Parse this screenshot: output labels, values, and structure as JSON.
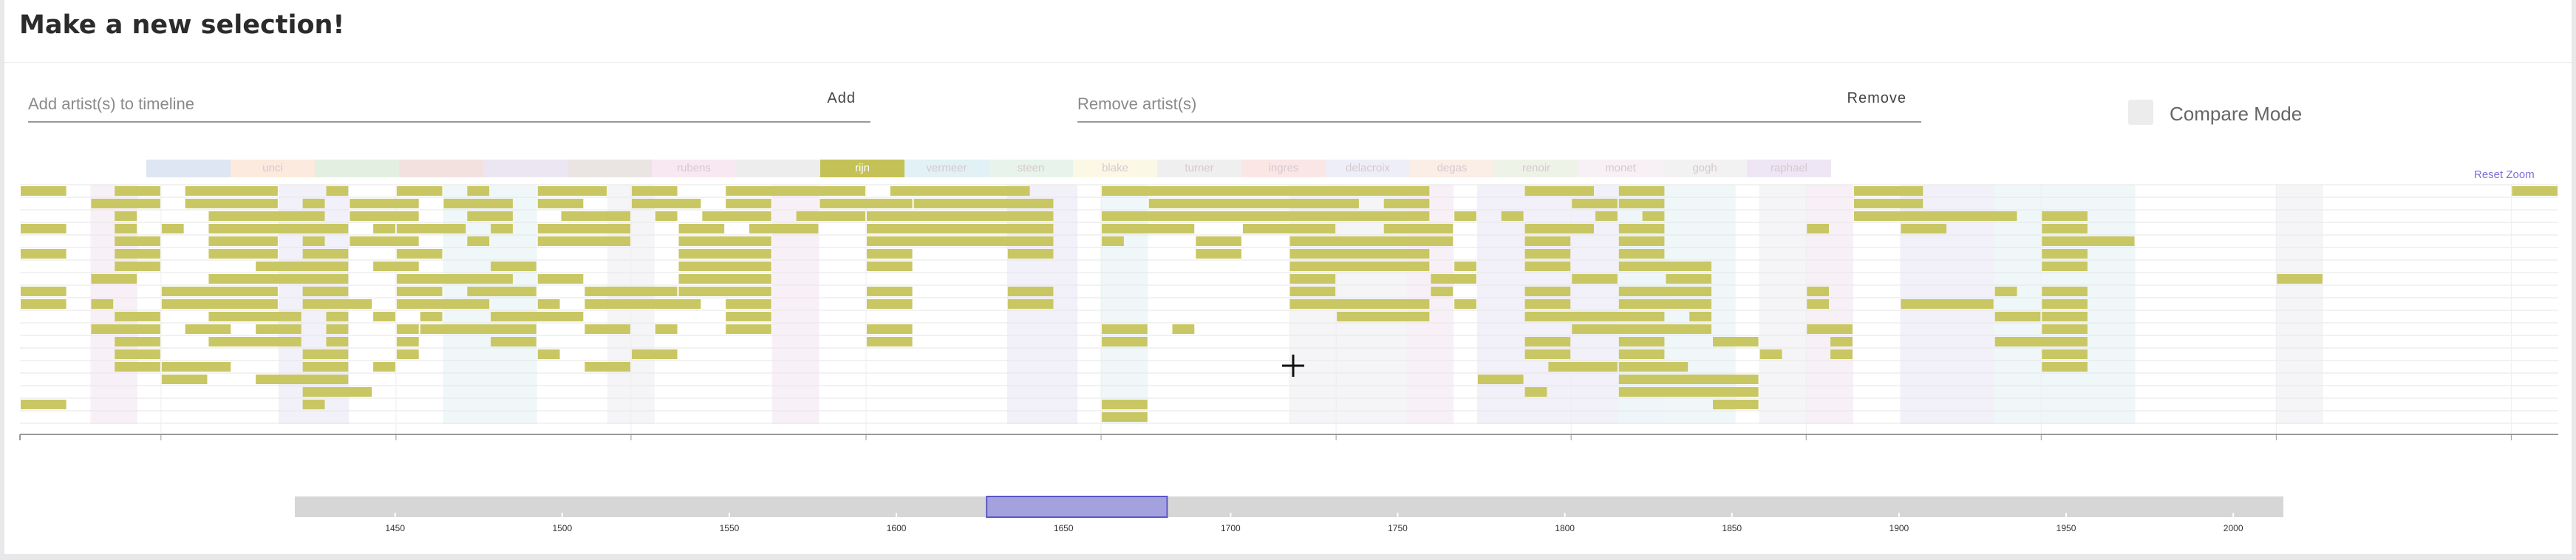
{
  "header": {
    "title": "Make a new selection!"
  },
  "add": {
    "placeholder": "Add artist(s) to timeline",
    "button": "Add"
  },
  "remove": {
    "placeholder": "Remove artist(s)",
    "button": "Remove"
  },
  "compare": {
    "label": "Compare Mode",
    "checked": false
  },
  "reset_zoom": "Reset Zoom",
  "legend": [
    {
      "label": "",
      "color": "#dfe6f3"
    },
    {
      "label": "unci",
      "color": "#fbeadd"
    },
    {
      "label": "",
      "color": "#e3efe0"
    },
    {
      "label": "",
      "color": "#f3e1e0"
    },
    {
      "label": "",
      "color": "#ebe6f2"
    },
    {
      "label": "",
      "color": "#eae5e2"
    },
    {
      "label": "rubens",
      "color": "#f8e8f2"
    },
    {
      "label": "",
      "color": "#ededed"
    },
    {
      "label": "rijn",
      "color": "#c4c156",
      "active": true
    },
    {
      "label": "vermeer",
      "color": "#e1f1f5"
    },
    {
      "label": "steen",
      "color": "#e8f4eb"
    },
    {
      "label": "blake",
      "color": "#fbf8e6"
    },
    {
      "label": "turner",
      "color": "#efefef"
    },
    {
      "label": "ingres",
      "color": "#fbe6e6"
    },
    {
      "label": "delacroix",
      "color": "#eeeef8"
    },
    {
      "label": "degas",
      "color": "#fbeee6"
    },
    {
      "label": "renoir",
      "color": "#eef3e8"
    },
    {
      "label": "monet",
      "color": "#f7f1f5"
    },
    {
      "label": "gogh",
      "color": "#f2f2f2"
    },
    {
      "label": "raphael",
      "color": "#eee6f4"
    }
  ],
  "chart_data": {
    "type": "timeline",
    "x_range": [
      1627,
      1681
    ],
    "x_ticks": [
      1630,
      1635,
      1640,
      1645,
      1650,
      1655,
      1660,
      1665,
      1670,
      1675,
      1680
    ],
    "highlighted_artist": "rijn",
    "works": [
      [
        [
          1627,
          1628
        ],
        [
          1629,
          1630
        ],
        [
          1630.5,
          1632.5
        ],
        [
          1633.5,
          1634
        ],
        [
          1635,
          1636
        ],
        [
          1636.5,
          1637
        ],
        [
          1638,
          1639.5
        ],
        [
          1640,
          1641
        ],
        [
          1642,
          1645
        ],
        [
          1645.5,
          1648.5
        ],
        [
          1650,
          1657
        ],
        [
          1659,
          1660.5
        ],
        [
          1661,
          1662
        ],
        [
          1666,
          1667.5
        ],
        [
          1680,
          1681
        ]
      ],
      [
        [
          1628.5,
          1630
        ],
        [
          1630.5,
          1632.5
        ],
        [
          1633,
          1633.5
        ],
        [
          1634,
          1635.5
        ],
        [
          1636,
          1637.5
        ],
        [
          1638,
          1639
        ],
        [
          1640,
          1641.5
        ],
        [
          1642,
          1643
        ],
        [
          1644,
          1646
        ],
        [
          1646,
          1649
        ],
        [
          1651,
          1655.5
        ],
        [
          1656,
          1657
        ],
        [
          1660,
          1661
        ],
        [
          1661,
          1662
        ],
        [
          1666,
          1667.5
        ]
      ],
      [
        [
          1629,
          1629.5
        ],
        [
          1631,
          1633.5
        ],
        [
          1634,
          1635.5
        ],
        [
          1636.5,
          1637.5
        ],
        [
          1638.5,
          1640
        ],
        [
          1640.5,
          1641
        ],
        [
          1641.5,
          1643
        ],
        [
          1643.5,
          1645
        ],
        [
          1645,
          1649
        ],
        [
          1650,
          1657
        ],
        [
          1657.5,
          1658
        ],
        [
          1658.5,
          1659
        ],
        [
          1660.5,
          1661
        ],
        [
          1661.5,
          1662
        ],
        [
          1666,
          1669.5
        ],
        [
          1670,
          1671
        ]
      ],
      [
        [
          1627,
          1628
        ],
        [
          1629,
          1629.5
        ],
        [
          1630,
          1630.5
        ],
        [
          1631,
          1634
        ],
        [
          1634.5,
          1635
        ],
        [
          1635,
          1636.5
        ],
        [
          1637,
          1637.5
        ],
        [
          1638,
          1640
        ],
        [
          1641,
          1642
        ],
        [
          1642.5,
          1644
        ],
        [
          1645,
          1649
        ],
        [
          1650,
          1652
        ],
        [
          1653,
          1655
        ],
        [
          1656,
          1657.5
        ],
        [
          1659,
          1660.5
        ],
        [
          1661,
          1662
        ],
        [
          1665,
          1665.5
        ],
        [
          1667,
          1668
        ],
        [
          1670,
          1671
        ]
      ],
      [
        [
          1629,
          1630
        ],
        [
          1631,
          1632.5
        ],
        [
          1633,
          1633.5
        ],
        [
          1634,
          1635.5
        ],
        [
          1636.5,
          1637
        ],
        [
          1638,
          1640
        ],
        [
          1641,
          1643
        ],
        [
          1645,
          1649
        ],
        [
          1650,
          1650.5
        ],
        [
          1652,
          1653
        ],
        [
          1654,
          1657.5
        ],
        [
          1659,
          1660
        ],
        [
          1661,
          1662
        ],
        [
          1670,
          1672
        ]
      ],
      [
        [
          1627,
          1628
        ],
        [
          1629,
          1630
        ],
        [
          1631,
          1632.5
        ],
        [
          1633,
          1634
        ],
        [
          1635,
          1636
        ],
        [
          1641,
          1643
        ],
        [
          1645,
          1646
        ],
        [
          1648,
          1649
        ],
        [
          1652,
          1653
        ],
        [
          1654,
          1657
        ],
        [
          1659,
          1660
        ],
        [
          1661,
          1662
        ],
        [
          1670,
          1671
        ]
      ],
      [
        [
          1629,
          1630
        ],
        [
          1632,
          1634
        ],
        [
          1634.5,
          1635.5
        ],
        [
          1637,
          1638
        ],
        [
          1641,
          1643
        ],
        [
          1645,
          1646
        ],
        [
          1654,
          1657
        ],
        [
          1657.5,
          1658
        ],
        [
          1659,
          1660
        ],
        [
          1661,
          1663
        ],
        [
          1670,
          1671
        ]
      ],
      [
        [
          1628.5,
          1629.5
        ],
        [
          1631,
          1634
        ],
        [
          1635,
          1637.5
        ],
        [
          1638,
          1639
        ],
        [
          1641,
          1643
        ],
        [
          1654,
          1655
        ],
        [
          1657,
          1658
        ],
        [
          1660,
          1661
        ],
        [
          1662,
          1663
        ],
        [
          1675,
          1676
        ]
      ],
      [
        [
          1627,
          1628
        ],
        [
          1630,
          1632.5
        ],
        [
          1633,
          1634
        ],
        [
          1635,
          1636
        ],
        [
          1636.5,
          1638
        ],
        [
          1639,
          1641
        ],
        [
          1641,
          1643
        ],
        [
          1645,
          1646
        ],
        [
          1648,
          1649
        ],
        [
          1654,
          1655
        ],
        [
          1657,
          1657.5
        ],
        [
          1659,
          1660
        ],
        [
          1661,
          1663
        ],
        [
          1665,
          1665.5
        ],
        [
          1669,
          1669.5
        ],
        [
          1670,
          1671
        ]
      ],
      [
        [
          1627,
          1628
        ],
        [
          1628.5,
          1629
        ],
        [
          1630,
          1632.5
        ],
        [
          1633,
          1634.5
        ],
        [
          1635,
          1637
        ],
        [
          1638,
          1638.5
        ],
        [
          1639,
          1641.5
        ],
        [
          1642,
          1643
        ],
        [
          1645,
          1646
        ],
        [
          1648,
          1649
        ],
        [
          1654,
          1657
        ],
        [
          1657.5,
          1658
        ],
        [
          1659,
          1660
        ],
        [
          1661,
          1663
        ],
        [
          1665,
          1665.5
        ],
        [
          1667,
          1669
        ],
        [
          1670,
          1671
        ]
      ],
      [
        [
          1629,
          1630
        ],
        [
          1631,
          1633
        ],
        [
          1633.5,
          1634
        ],
        [
          1634.5,
          1635
        ],
        [
          1635.5,
          1636
        ],
        [
          1637,
          1639
        ],
        [
          1642,
          1643
        ],
        [
          1655,
          1657
        ],
        [
          1659,
          1662
        ],
        [
          1662.5,
          1663
        ],
        [
          1669,
          1670
        ],
        [
          1670,
          1671
        ]
      ],
      [
        [
          1628.5,
          1630
        ],
        [
          1630.5,
          1631.5
        ],
        [
          1632,
          1633
        ],
        [
          1633.5,
          1634
        ],
        [
          1635,
          1635.5
        ],
        [
          1635.5,
          1638
        ],
        [
          1639,
          1640
        ],
        [
          1640.5,
          1641
        ],
        [
          1642,
          1643
        ],
        [
          1645,
          1646
        ],
        [
          1650,
          1651
        ],
        [
          1651.5,
          1652
        ],
        [
          1660,
          1663
        ],
        [
          1665,
          1666
        ],
        [
          1670,
          1671
        ]
      ],
      [
        [
          1629,
          1630
        ],
        [
          1631,
          1633
        ],
        [
          1633.5,
          1634
        ],
        [
          1635,
          1635.5
        ],
        [
          1637,
          1638
        ],
        [
          1645,
          1646
        ],
        [
          1650,
          1651
        ],
        [
          1659,
          1660
        ],
        [
          1661,
          1662
        ],
        [
          1663,
          1664
        ],
        [
          1665.5,
          1666
        ],
        [
          1669,
          1671
        ]
      ],
      [
        [
          1629,
          1630
        ],
        [
          1633,
          1634
        ],
        [
          1635,
          1635.5
        ],
        [
          1638,
          1638.5
        ],
        [
          1640,
          1641
        ],
        [
          1659,
          1660
        ],
        [
          1661,
          1662
        ],
        [
          1664,
          1664.5
        ],
        [
          1665.5,
          1666
        ],
        [
          1670,
          1671
        ]
      ],
      [
        [
          1629,
          1630
        ],
        [
          1630,
          1631.5
        ],
        [
          1633,
          1634
        ],
        [
          1634.5,
          1635
        ],
        [
          1639,
          1640
        ],
        [
          1659.5,
          1661
        ],
        [
          1661,
          1662.5
        ],
        [
          1670,
          1671
        ]
      ],
      [
        [
          1630,
          1631
        ],
        [
          1632,
          1634
        ],
        [
          1658,
          1659
        ],
        [
          1661,
          1664
        ]
      ],
      [
        [
          1633,
          1634.5
        ],
        [
          1659,
          1659.5
        ],
        [
          1661,
          1664
        ]
      ],
      [
        [
          1627,
          1628
        ],
        [
          1633,
          1633.5
        ],
        [
          1650,
          1651
        ],
        [
          1663,
          1664
        ]
      ],
      [
        [
          1650,
          1651
        ]
      ]
    ],
    "shade_columns": [
      [
        1628.5,
        1629.5
      ],
      [
        1632.5,
        1634
      ],
      [
        1636,
        1638
      ],
      [
        1639.5,
        1640.5
      ],
      [
        1643,
        1644
      ],
      [
        1648,
        1649.5
      ],
      [
        1650,
        1651
      ],
      [
        1654,
        1656.5
      ],
      [
        1656.5,
        1657.5
      ],
      [
        1658,
        1662
      ],
      [
        1661,
        1663.5
      ],
      [
        1664,
        1665
      ],
      [
        1665,
        1666
      ],
      [
        1667,
        1669
      ],
      [
        1669,
        1672
      ],
      [
        1675,
        1676
      ]
    ]
  },
  "overview": {
    "ticks": [
      1450,
      1500,
      1550,
      1600,
      1650,
      1700,
      1750,
      1800,
      1850,
      1900,
      1950,
      2000
    ],
    "domain": [
      1420,
      2015
    ],
    "selection": [
      1627,
      1681
    ]
  }
}
